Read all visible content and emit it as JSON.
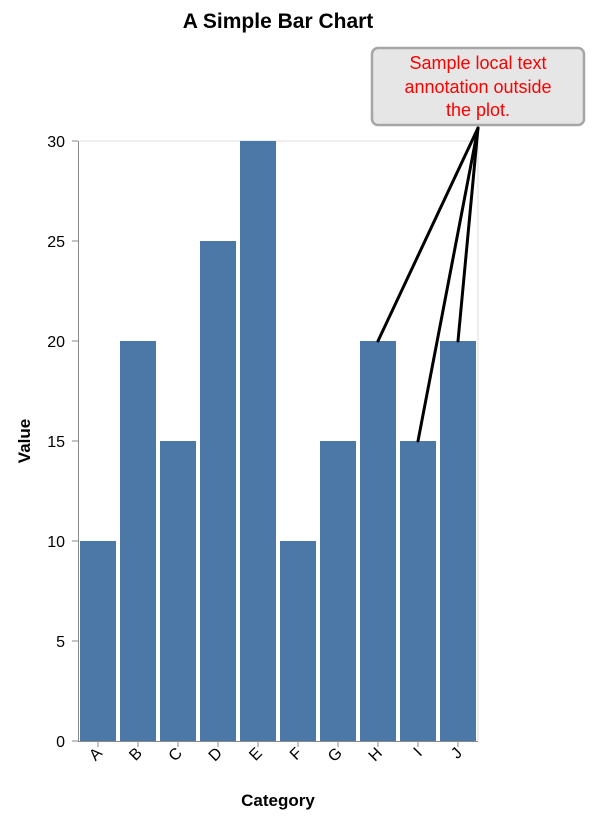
{
  "colors": {
    "bar": "#4c78a8",
    "annotation_text": "#ff0000",
    "annotation_box_fill": "#e6e6e6",
    "annotation_box_stroke": "#a6a6a6",
    "leader_line": "#000000"
  },
  "chart_data": {
    "type": "bar",
    "title": "A Simple Bar Chart",
    "xlabel": "Category",
    "ylabel": "Value",
    "categories": [
      "A",
      "B",
      "C",
      "D",
      "E",
      "F",
      "G",
      "H",
      "I",
      "J"
    ],
    "values": [
      10,
      20,
      15,
      25,
      30,
      10,
      15,
      20,
      15,
      20
    ],
    "ylim": [
      0,
      30
    ],
    "yticks": [
      "0",
      "5",
      "10",
      "15",
      "20",
      "25",
      "30"
    ],
    "grid": false,
    "annotation": {
      "lines": [
        "Sample local text",
        "annotation outside",
        "the plot."
      ],
      "targets": [
        "H",
        "I",
        "J"
      ]
    }
  }
}
